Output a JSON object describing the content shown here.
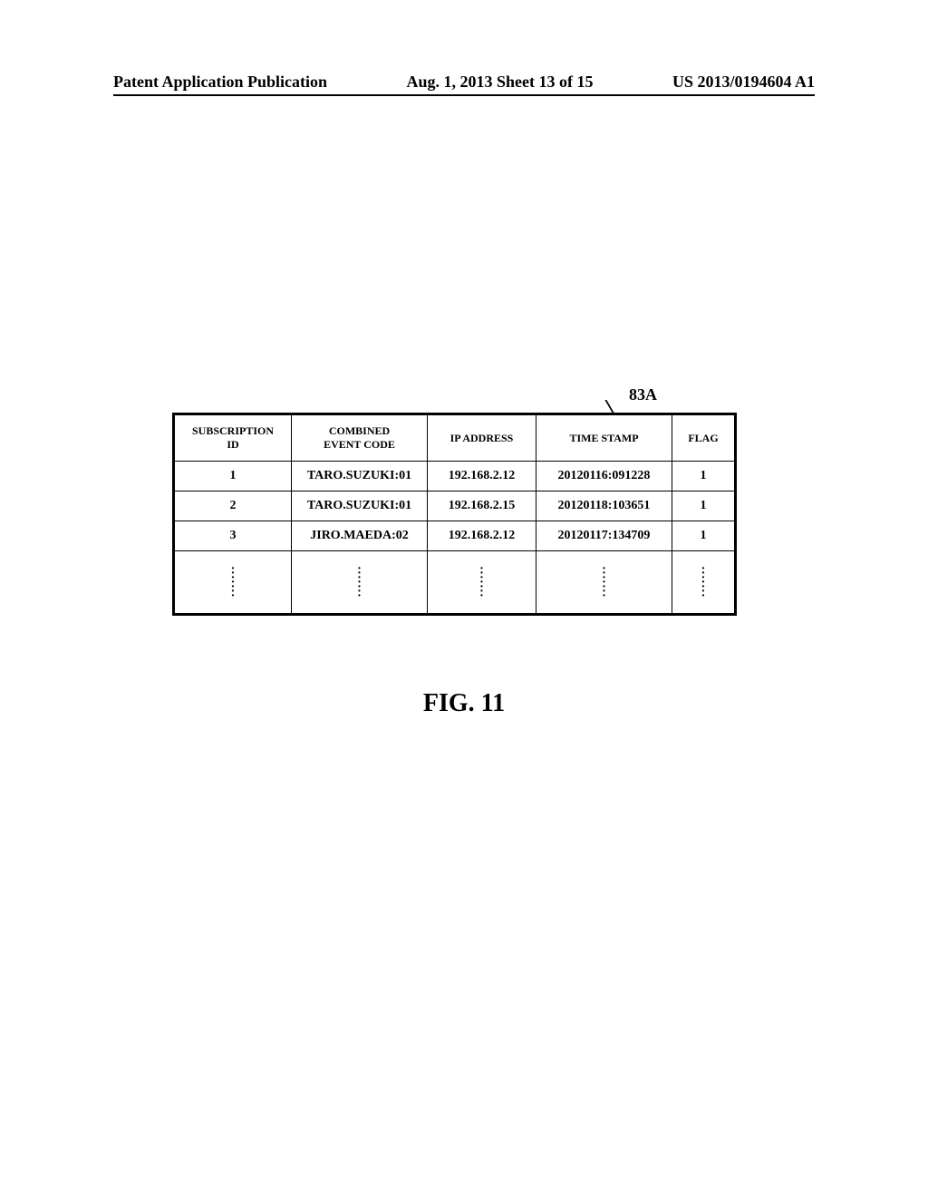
{
  "header": {
    "left": "Patent Application Publication",
    "center": "Aug. 1, 2013  Sheet 13 of 15",
    "right": "US 2013/0194604 A1"
  },
  "figure": {
    "reference_label": "83A",
    "caption": "FIG. 11",
    "table": {
      "columns": [
        "SUBSCRIPTION\nID",
        "COMBINED\nEVENT CODE",
        "IP ADDRESS",
        "TIME STAMP",
        "FLAG"
      ],
      "rows": [
        {
          "id": "1",
          "code": "TARO.SUZUKI:01",
          "ip": "192.168.2.12",
          "ts": "20120116:091228",
          "flag": "1"
        },
        {
          "id": "2",
          "code": "TARO.SUZUKI:01",
          "ip": "192.168.2.15",
          "ts": "20120118:103651",
          "flag": "1"
        },
        {
          "id": "3",
          "code": "JIRO.MAEDA:02",
          "ip": "192.168.2.12",
          "ts": "20120117:134709",
          "flag": "1"
        }
      ]
    }
  }
}
